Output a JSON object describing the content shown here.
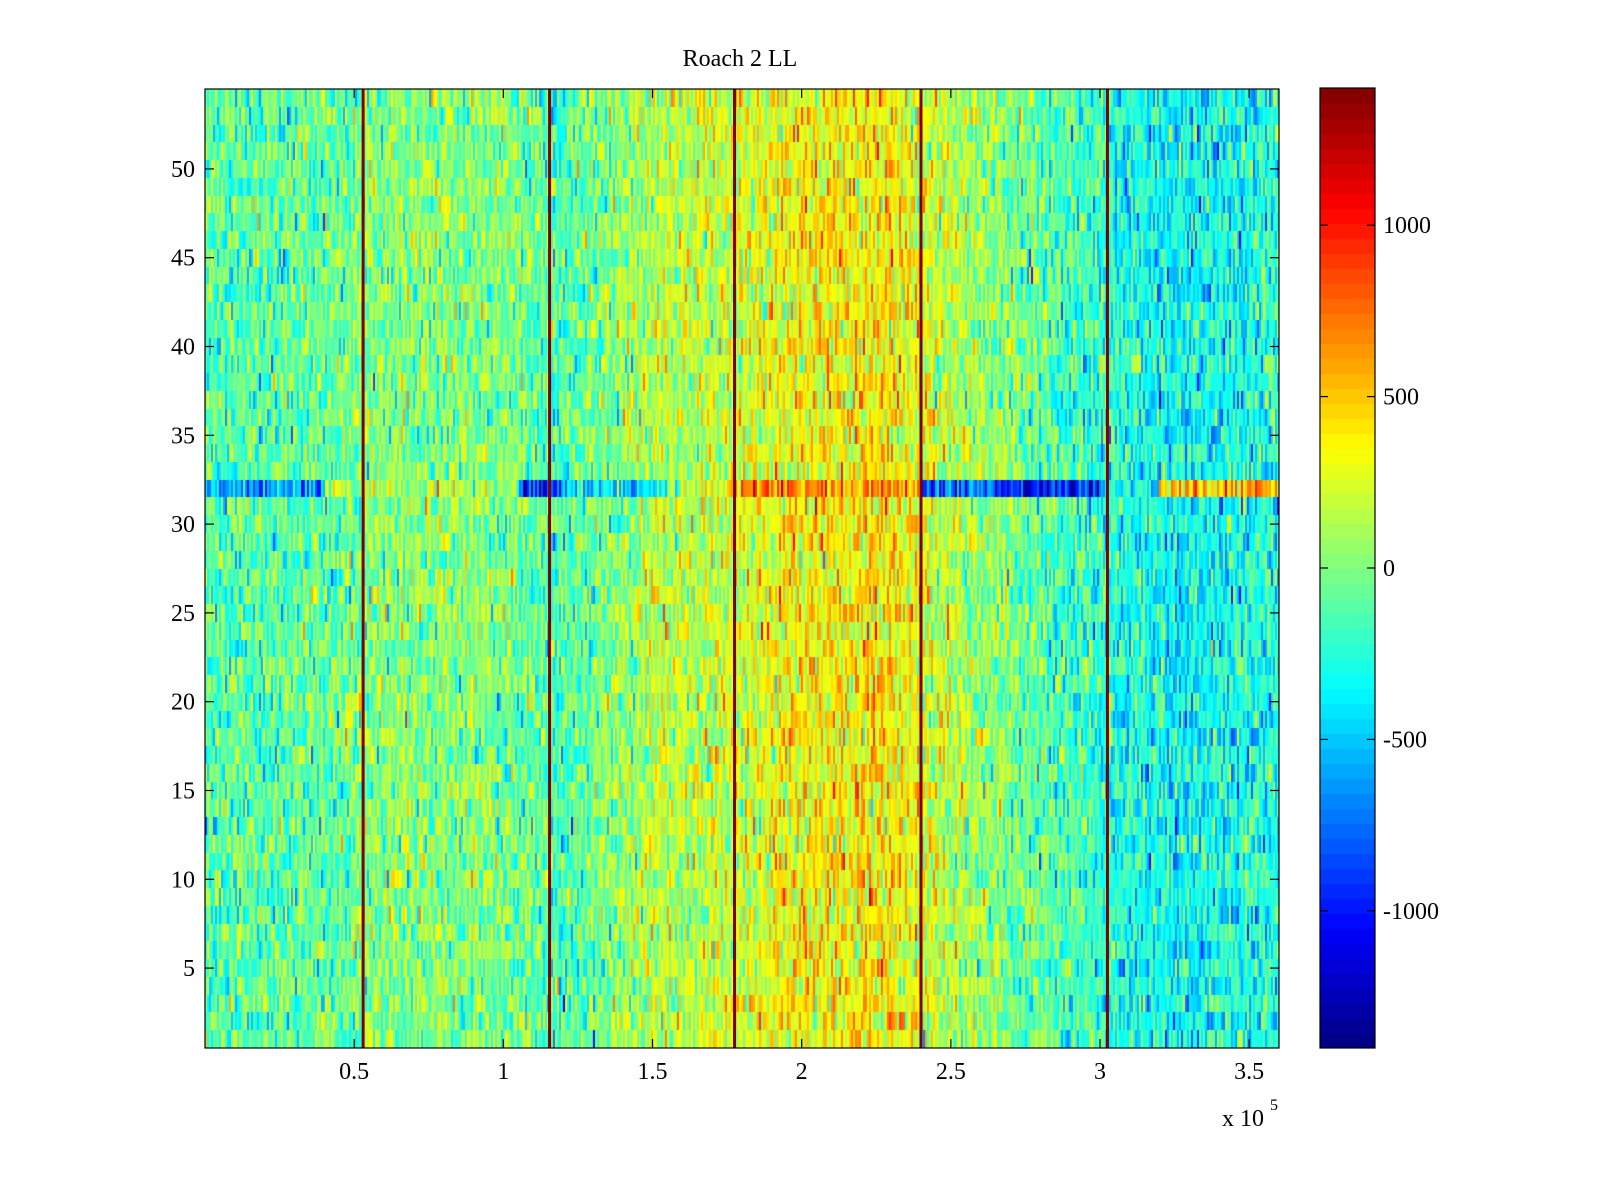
{
  "chart_data": {
    "type": "heatmap",
    "title": "Roach 2 LL",
    "xlabel": "",
    "ylabel": "",
    "x_exponent_label": {
      "base": "x 10",
      "exp": "5"
    },
    "xlim": [
      0,
      360000
    ],
    "ylim": [
      0.5,
      54.5
    ],
    "x_ticks": [
      {
        "value": 50000,
        "label": "0.5"
      },
      {
        "value": 100000,
        "label": "1"
      },
      {
        "value": 150000,
        "label": "1.5"
      },
      {
        "value": 200000,
        "label": "2"
      },
      {
        "value": 250000,
        "label": "2.5"
      },
      {
        "value": 300000,
        "label": "3"
      },
      {
        "value": 350000,
        "label": "3.5"
      }
    ],
    "y_ticks": [
      {
        "value": 5,
        "label": "5"
      },
      {
        "value": 10,
        "label": "10"
      },
      {
        "value": 15,
        "label": "15"
      },
      {
        "value": 20,
        "label": "20"
      },
      {
        "value": 25,
        "label": "25"
      },
      {
        "value": 30,
        "label": "30"
      },
      {
        "value": 35,
        "label": "35"
      },
      {
        "value": 40,
        "label": "40"
      },
      {
        "value": 45,
        "label": "45"
      },
      {
        "value": 50,
        "label": "50"
      }
    ],
    "rows": 54,
    "colorbar": {
      "colormap": "jet",
      "clim": [
        -1400,
        1400
      ],
      "ticks": [
        {
          "value": 1000,
          "label": "1000"
        },
        {
          "value": 500,
          "label": "500"
        },
        {
          "value": 0,
          "label": "0"
        },
        {
          "value": -500,
          "label": "-500"
        },
        {
          "value": -1000,
          "label": "-1000"
        }
      ]
    },
    "column_profile": [
      {
        "x": 0,
        "mean": -120
      },
      {
        "x": 40000,
        "mean": -80
      },
      {
        "x": 60000,
        "mean": 30
      },
      {
        "x": 100000,
        "mean": 0
      },
      {
        "x": 120000,
        "mean": -150
      },
      {
        "x": 150000,
        "mean": 150
      },
      {
        "x": 175000,
        "mean": 200
      },
      {
        "x": 200000,
        "mean": 350
      },
      {
        "x": 230000,
        "mean": 380
      },
      {
        "x": 250000,
        "mean": 150
      },
      {
        "x": 280000,
        "mean": -100
      },
      {
        "x": 310000,
        "mean": -300
      },
      {
        "x": 330000,
        "mean": -350
      },
      {
        "x": 360000,
        "mean": -250
      }
    ],
    "noise_std": 230,
    "highlight_row": {
      "row": 32,
      "segments": [
        {
          "x0": 0,
          "x1": 40000,
          "value": -650
        },
        {
          "x0": 40000,
          "x1": 100000,
          "value": 150
        },
        {
          "x0": 105000,
          "x1": 120000,
          "value": -900
        },
        {
          "x0": 120000,
          "x1": 155000,
          "value": -400
        },
        {
          "x0": 175000,
          "x1": 240000,
          "value": 650
        },
        {
          "x0": 240000,
          "x1": 265000,
          "value": -850
        },
        {
          "x0": 265000,
          "x1": 300000,
          "value": -1050
        },
        {
          "x0": 320000,
          "x1": 360000,
          "value": 550
        }
      ]
    },
    "vertical_lines": [
      {
        "x": 53000,
        "value": 1400
      },
      {
        "x": 115500,
        "value": 1400
      },
      {
        "x": 177500,
        "value": 1400
      },
      {
        "x": 240000,
        "value": 1400
      },
      {
        "x": 302500,
        "value": 1400
      }
    ]
  }
}
